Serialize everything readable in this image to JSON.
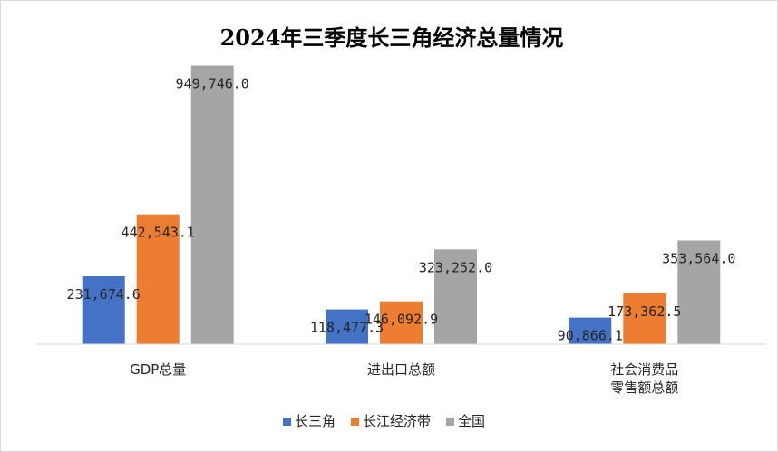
{
  "chart_data": {
    "type": "bar",
    "title": "2024年三季度长三角经济总量情况",
    "xlabel": "",
    "ylabel": "",
    "ylim": [
      0,
      1050000
    ],
    "grid": false,
    "legend_position": "bottom",
    "categories": [
      [
        "GDP总量"
      ],
      [
        "进出口总额"
      ],
      [
        "社会消费品",
        "零售额总额"
      ]
    ],
    "series": [
      {
        "name": "长三角",
        "color": "#4472c4",
        "values": [
          231674.6,
          118477.3,
          90866.1
        ],
        "labels": [
          "231,674.6",
          "118,477.3",
          "90,866.1"
        ]
      },
      {
        "name": "长江经济带",
        "color": "#ed7d31",
        "values": [
          442543.1,
          146092.9,
          173362.5
        ],
        "labels": [
          "442,543.1",
          "146,092.9",
          "173,362.5"
        ]
      },
      {
        "name": "全国",
        "color": "#a5a5a5",
        "values": [
          949746.0,
          323252.0,
          353564.0
        ],
        "labels": [
          "949,746.0",
          "323,252.0",
          "353,564.0"
        ]
      }
    ]
  }
}
